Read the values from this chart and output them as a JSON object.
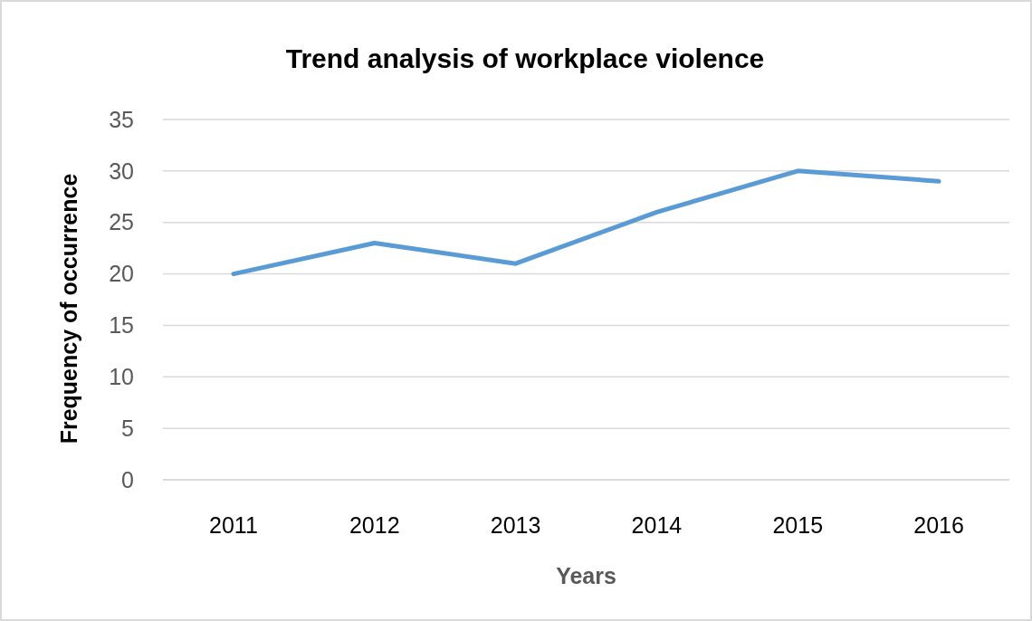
{
  "chart_data": {
    "type": "line",
    "title": "Trend analysis of workplace violence",
    "xlabel": "Years",
    "ylabel": "Frequency of occurrence",
    "categories": [
      "2011",
      "2012",
      "2013",
      "2014",
      "2015",
      "2016"
    ],
    "series": [
      {
        "color": "#5b9bd5",
        "values": [
          20,
          23,
          21,
          26,
          30,
          29
        ]
      }
    ],
    "ylim": [
      0,
      35
    ],
    "yticks": [
      0,
      5,
      10,
      15,
      20,
      25,
      30,
      35
    ],
    "grid": "y",
    "marker": "none",
    "line_style": "solid"
  }
}
